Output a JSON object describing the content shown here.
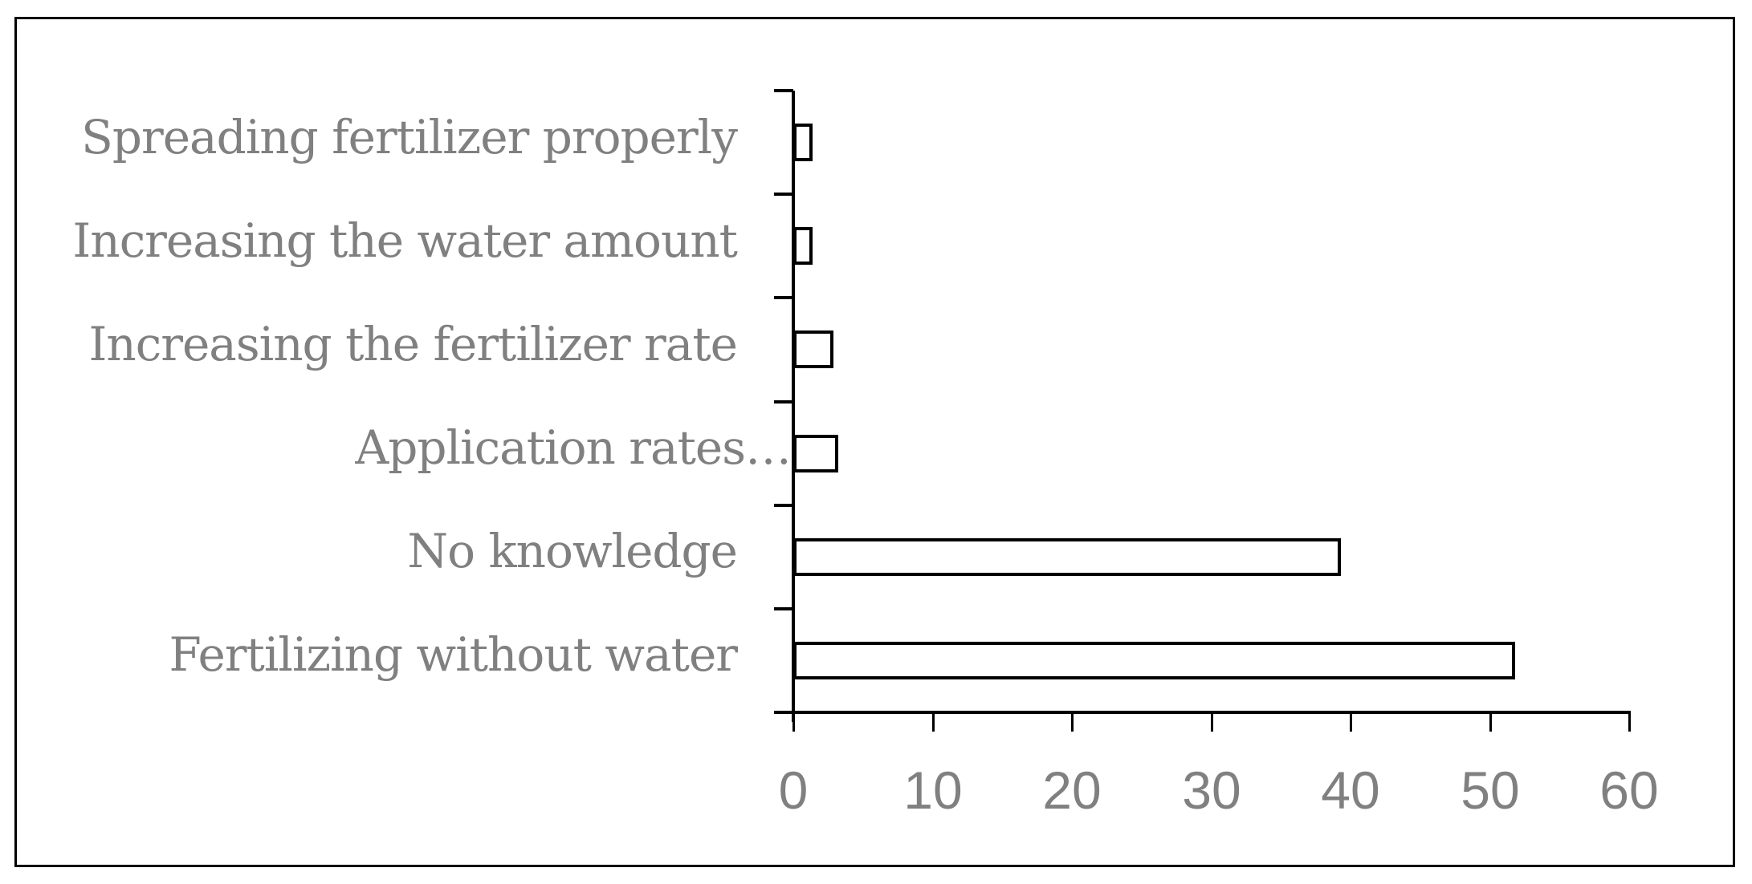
{
  "chart_data": {
    "type": "bar",
    "orientation": "horizontal",
    "title": "",
    "xlabel": "",
    "ylabel": "",
    "categories": [
      "Spreading fertilizer properly",
      "Increasing the water amount",
      "Increasing the fertilizer rate",
      "Application rates…",
      "No knowledge",
      "Fertilizing without water"
    ],
    "values": [
      1.4,
      1.4,
      2.9,
      3.2,
      39.3,
      51.8
    ],
    "xlim": [
      0,
      60
    ],
    "x_ticks": [
      0,
      10,
      20,
      30,
      40,
      50,
      60
    ],
    "x_tick_labels": [
      "0",
      "10",
      "20",
      "30",
      "40",
      "50",
      "60"
    ],
    "grid": false,
    "legend": null,
    "bar_fill": "#ffffff",
    "bar_edge": "#000000",
    "label_color": "#808080",
    "frame_border": true
  }
}
